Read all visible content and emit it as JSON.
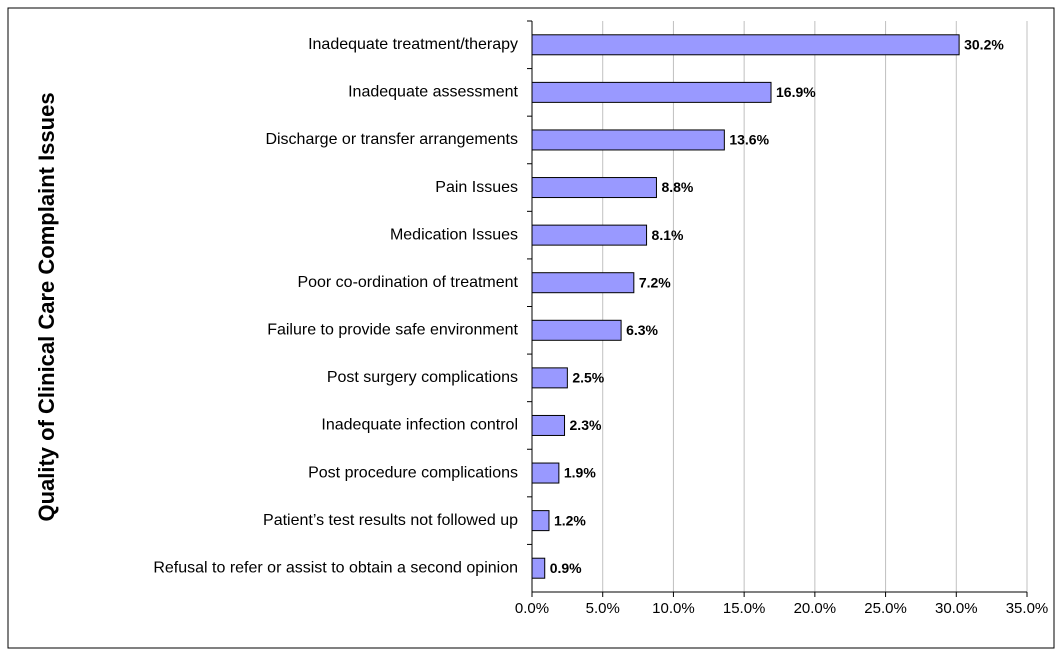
{
  "chart_data": {
    "type": "barh",
    "y_label": "Quality of Clinical Care Complaint Issues",
    "categories": [
      "Inadequate treatment/therapy",
      "Inadequate assessment",
      "Discharge or transfer arrangements",
      "Pain Issues",
      "Medication Issues",
      "Poor co-ordination of treatment",
      "Failure to provide safe environment",
      "Post surgery complications",
      "Inadequate infection control",
      "Post procedure complications",
      "Patient’s test results not followed up",
      "Refusal to refer or assist to obtain a second opinion"
    ],
    "values": [
      30.2,
      16.9,
      13.6,
      8.8,
      8.1,
      7.2,
      6.3,
      2.5,
      2.3,
      1.9,
      1.2,
      0.9
    ],
    "value_labels": [
      "30.2%",
      "16.9%",
      "13.6%",
      "8.8%",
      "8.1%",
      "7.2%",
      "6.3%",
      "2.5%",
      "2.3%",
      "1.9%",
      "1.2%",
      "0.9%"
    ],
    "color": "#9999ff",
    "label_color": "#ff0000",
    "xlim": [
      0,
      35
    ],
    "xticks": [
      {
        "value": 0,
        "label": "0.0%"
      },
      {
        "value": 5,
        "label": "5.0%"
      },
      {
        "value": 10,
        "label": "10.0%"
      },
      {
        "value": 15,
        "label": "15.0%"
      },
      {
        "value": 20,
        "label": "20.0%"
      },
      {
        "value": 25,
        "label": "25.0%"
      },
      {
        "value": 30,
        "label": "30.0%"
      },
      {
        "value": 35,
        "label": "35.0%"
      }
    ],
    "grid": true
  }
}
